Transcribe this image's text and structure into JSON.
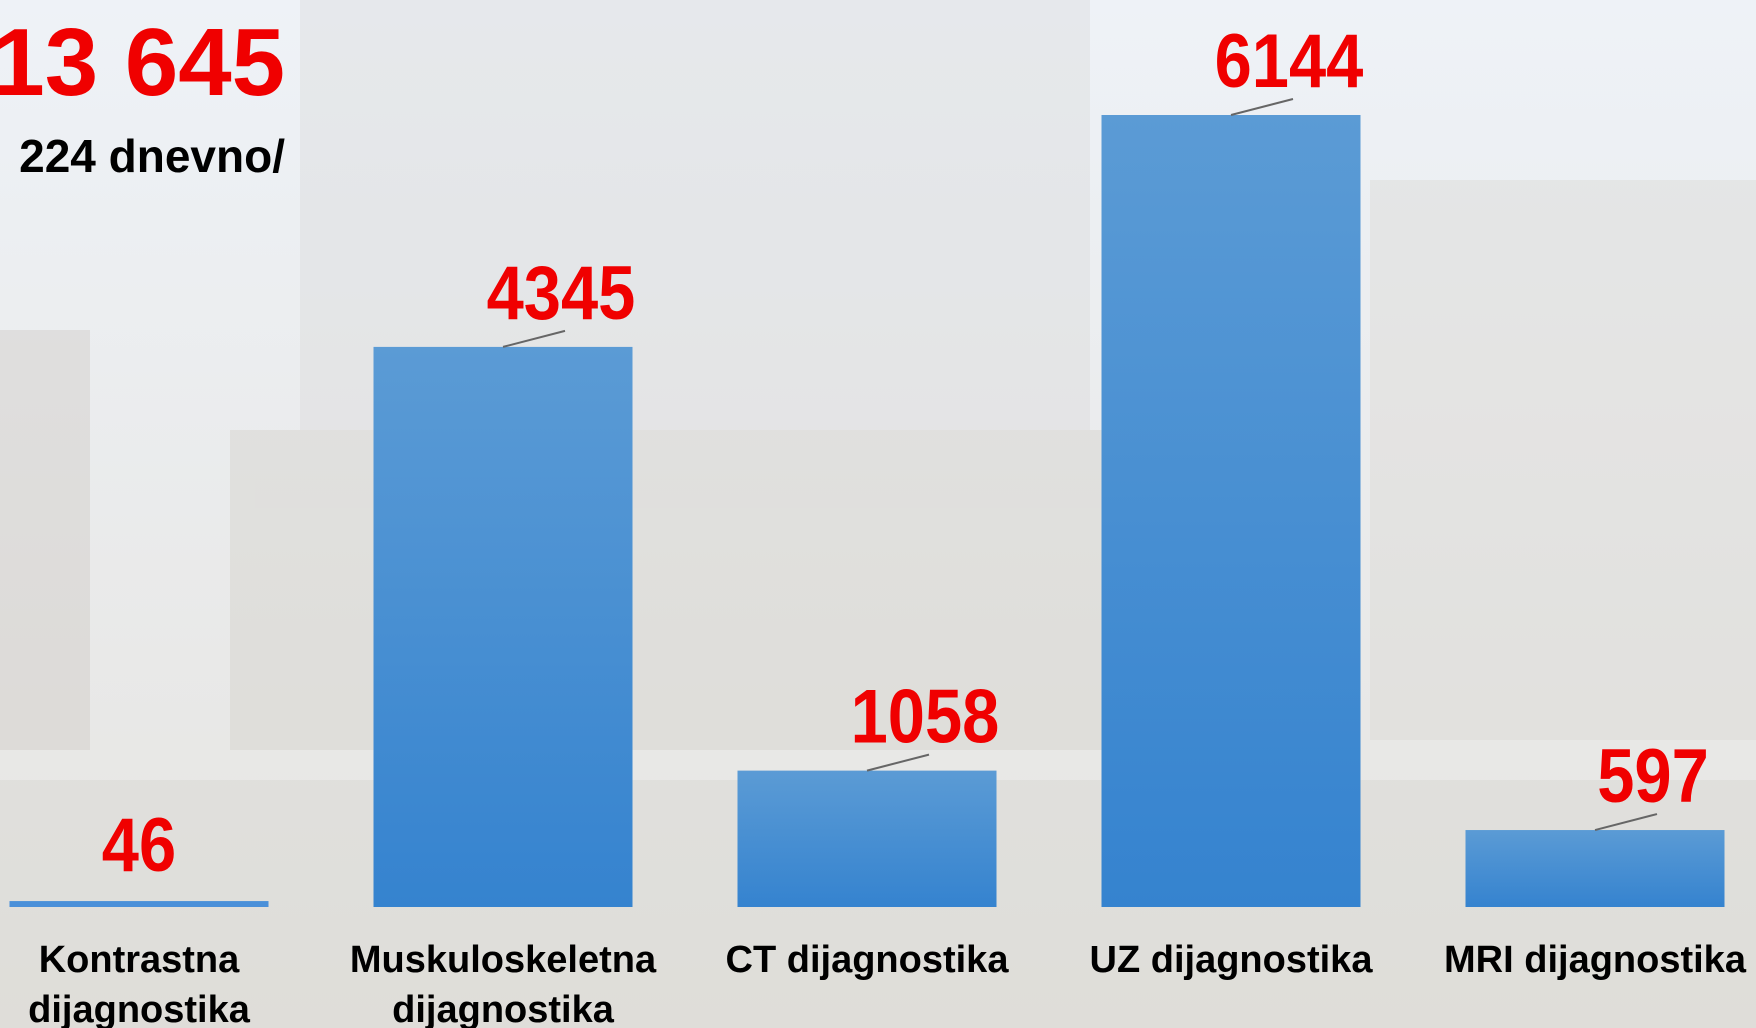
{
  "chart_data": {
    "type": "bar",
    "title": "13 645",
    "subtitle": "224 dnevno/",
    "categories": [
      [
        "Kontrastna",
        "dijagnostika"
      ],
      [
        "Muskuloskeletna",
        "dijagnostika"
      ],
      [
        "CT dijagnostika"
      ],
      [
        "UZ dijagnostika"
      ],
      [
        "MRI dijagnostika"
      ]
    ],
    "values": [
      46,
      4345,
      1058,
      6144,
      597
    ],
    "color": "#4a90d9",
    "label_color": "#f00000"
  }
}
